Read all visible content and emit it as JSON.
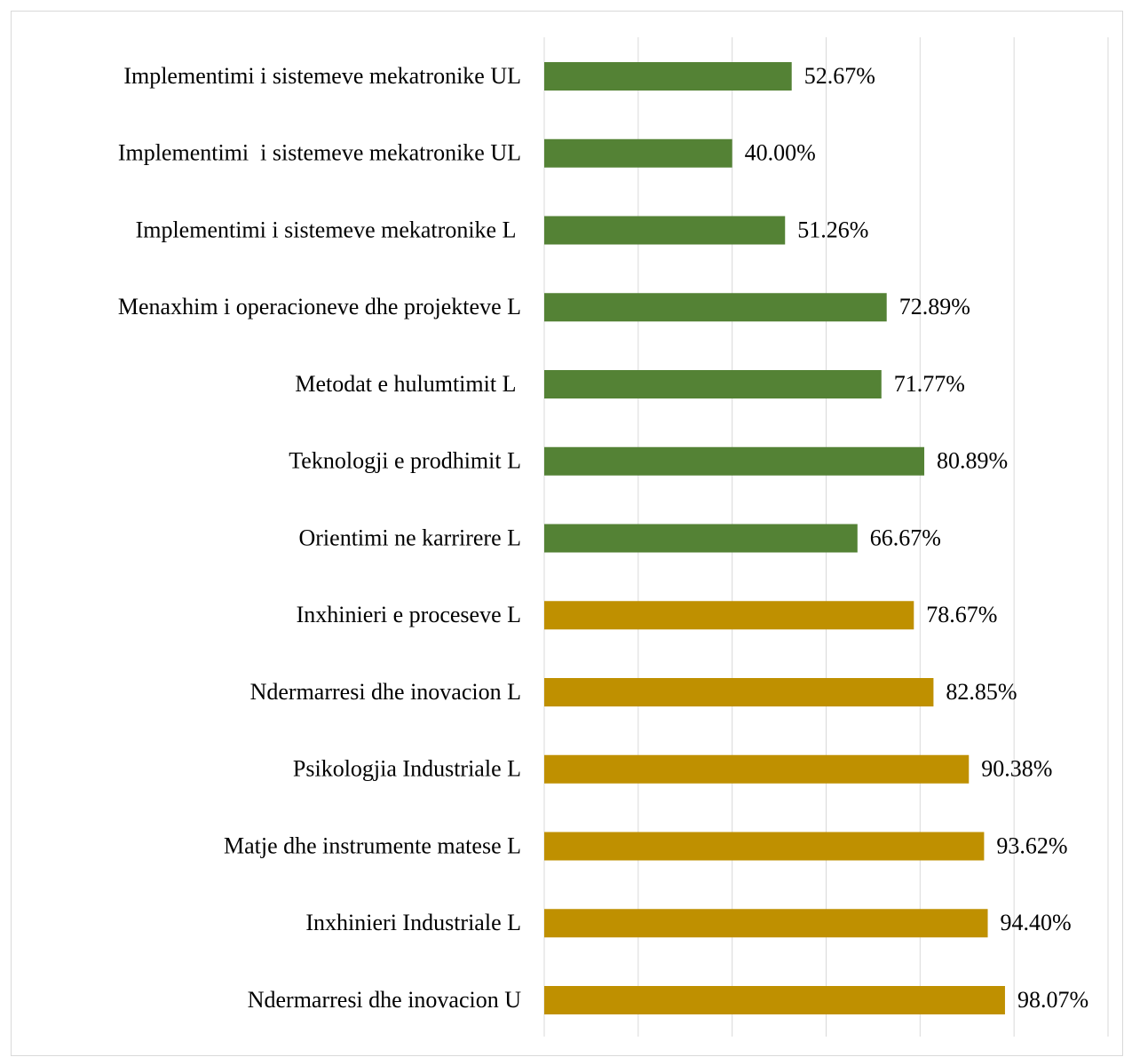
{
  "chart_data": {
    "type": "bar",
    "categories": [
      "Implementimi i sistemeve mekatronike UL",
      "Implementimi  i sistemeve mekatronike UL",
      "Implementimi i sistemeve mekatronike L ",
      "Menaxhim i operacioneve dhe projekteve L",
      "Metodat e hulumtimit L ",
      "Teknologji e prodhimit L",
      "Orientimi ne karrirere L",
      "Inxhinieri e proceseve L",
      "Ndermarresi dhe inovacion L",
      "Psikologjia Industriale L",
      "Matje dhe instrumente matese L",
      "Inxhinieri Industriale L",
      "Ndermarresi dhe inovacion U"
    ],
    "values": [
      52.67,
      40.0,
      51.26,
      72.89,
      71.77,
      80.89,
      66.67,
      78.67,
      82.85,
      90.38,
      93.62,
      94.4,
      98.07
    ],
    "value_labels": [
      "52.67%",
      "40.00%",
      "51.26%",
      "72.89%",
      "71.77%",
      "80.89%",
      "66.67%",
      "78.67%",
      "82.85%",
      "90.38%",
      "93.62%",
      "94.40%",
      "98.07%"
    ],
    "colors": [
      "#548235",
      "#548235",
      "#548235",
      "#548235",
      "#548235",
      "#548235",
      "#548235",
      "#bf9000",
      "#bf9000",
      "#bf9000",
      "#bf9000",
      "#bf9000",
      "#bf9000"
    ],
    "xlim": [
      0,
      120
    ],
    "xticks": [
      0,
      20,
      40,
      60,
      80,
      100,
      120
    ],
    "grid": true
  }
}
